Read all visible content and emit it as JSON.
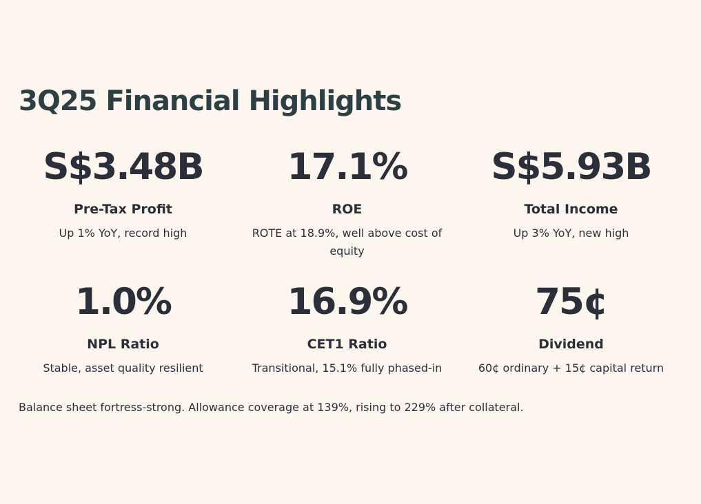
{
  "title": "3Q25 Financial Highlights",
  "metrics": [
    {
      "value": "S$3.48B",
      "label": "Pre-Tax Profit",
      "desc": "Up 1% YoY, record high"
    },
    {
      "value": "17.1%",
      "label": "ROE",
      "desc": "ROTE at 18.9%, well above cost of equity"
    },
    {
      "value": "S$5.93B",
      "label": "Total Income",
      "desc": "Up 3% YoY, new high"
    },
    {
      "value": "1.0%",
      "label": "NPL Ratio",
      "desc": "Stable, asset quality resilient"
    },
    {
      "value": "16.9%",
      "label": "CET1 Ratio",
      "desc": "Transitional, 15.1% fully phased-in"
    },
    {
      "value": "75¢",
      "label": "Dividend",
      "desc": "60¢ ordinary + 15¢ capital return"
    }
  ],
  "footnote": "Balance sheet fortress-strong. Allowance coverage at 139%, rising to 229% after collateral."
}
